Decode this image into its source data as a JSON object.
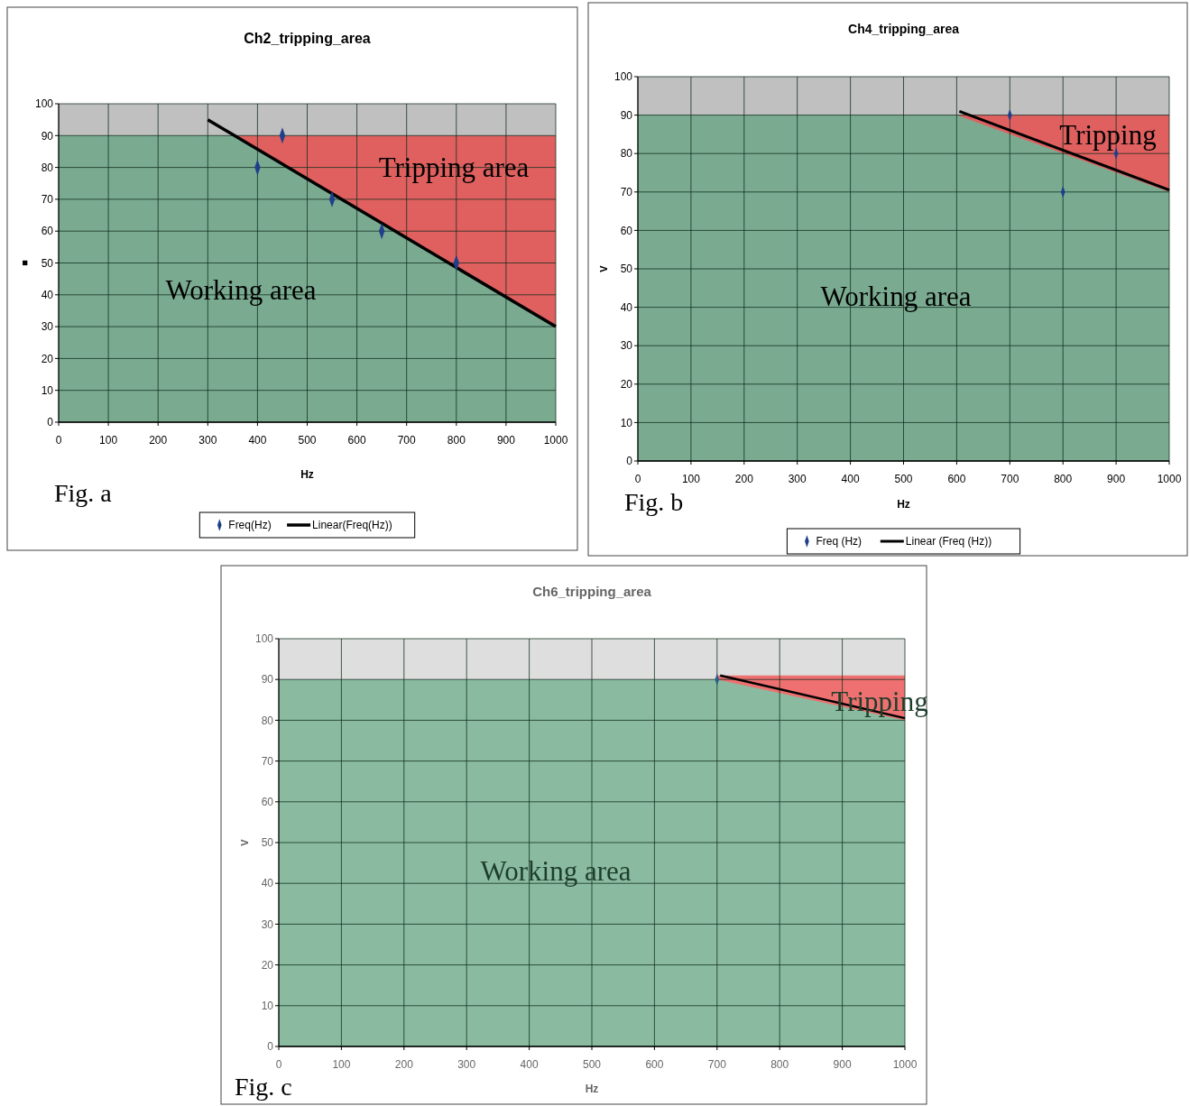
{
  "chart_data": [
    {
      "type": "area",
      "title": "Ch2_tripping_area",
      "xlabel": "Hz",
      "ylabel": "■",
      "xlim": [
        0,
        1000
      ],
      "xticks": [
        0,
        100,
        200,
        300,
        400,
        500,
        600,
        700,
        800,
        900,
        1000
      ],
      "ylim": [
        0,
        100
      ],
      "yticks": [
        0,
        10,
        20,
        30,
        40,
        50,
        60,
        70,
        80,
        90,
        100
      ],
      "grid": true,
      "legend": "bottom",
      "line_style": "solid",
      "series": [
        {
          "color": "#e06060",
          "x": [
            350,
            1000
          ],
          "values": [
            90,
            90
          ]
        },
        {
          "color": "#7aab91",
          "x": [
            0,
            350,
            1000
          ],
          "values": [
            90,
            90,
            30
          ]
        },
        {
          "type": "scatter",
          "marker": "diamond",
          "name": "Freq(Hz)",
          "color": "#1f3f8a",
          "x": [
            400,
            450,
            550,
            650,
            800
          ],
          "values": [
            80,
            90,
            70,
            60,
            50
          ]
        },
        {
          "type": "line",
          "name": "Linear(Freq(Hz))",
          "color": "#000000",
          "x": [
            300,
            1000
          ],
          "values": [
            95,
            30
          ]
        }
      ],
      "annotations": [
        "Tripping area",
        "Working area",
        "Fig. a"
      ]
    },
    {
      "type": "area",
      "title": "Ch4_tripping_area",
      "xlabel": "Hz",
      "ylabel": "V",
      "xlim": [
        0,
        1000
      ],
      "xticks": [
        0,
        100,
        200,
        300,
        400,
        500,
        600,
        700,
        800,
        900,
        1000
      ],
      "ylim": [
        0,
        100
      ],
      "yticks": [
        0,
        10,
        20,
        30,
        40,
        50,
        60,
        70,
        80,
        90,
        100
      ],
      "grid": true,
      "legend": "bottom",
      "line_style": "solid",
      "series": [
        {
          "color": "#e06060",
          "x": [
            600,
            1000
          ],
          "values": [
            90,
            90
          ]
        },
        {
          "color": "#7aab91",
          "x": [
            0,
            600,
            1000
          ],
          "values": [
            90,
            90,
            70
          ]
        },
        {
          "type": "scatter",
          "marker": "diamond",
          "name": "Freq (Hz)",
          "color": "#1f3f8a",
          "x": [
            700,
            800,
            900
          ],
          "values": [
            90,
            70,
            80
          ]
        },
        {
          "type": "line",
          "name": "Linear (Freq (Hz))",
          "color": "#000000",
          "x": [
            605,
            1000
          ],
          "values": [
            91,
            70.5
          ]
        }
      ],
      "annotations": [
        "Tripping",
        "Working area",
        "Fig. b"
      ]
    },
    {
      "type": "area",
      "title": "Ch6_tripping_area",
      "xlabel": "Hz",
      "ylabel": "V",
      "xlim": [
        0,
        1000
      ],
      "xticks": [
        0,
        100,
        200,
        300,
        400,
        500,
        600,
        700,
        800,
        900,
        1000
      ],
      "ylim": [
        0,
        100
      ],
      "yticks": [
        0,
        10,
        20,
        30,
        40,
        50,
        60,
        70,
        80,
        90,
        100
      ],
      "grid": true,
      "line_style": "solid",
      "series": [
        {
          "color": "#ee7070",
          "x": [
            700,
            1000
          ],
          "values": [
            91,
            91
          ]
        },
        {
          "color": "#8abba0",
          "x": [
            0,
            700,
            1000
          ],
          "values": [
            90,
            90,
            80
          ]
        },
        {
          "type": "scatter",
          "marker": "diamond",
          "color": "#2b5f8a",
          "x": [
            700
          ],
          "values": [
            90
          ]
        },
        {
          "type": "line",
          "color": "#000000",
          "x": [
            705,
            1000
          ],
          "values": [
            91,
            80.5
          ]
        }
      ],
      "annotations": [
        "Tripping",
        "Working area",
        "Fig. c"
      ]
    }
  ]
}
